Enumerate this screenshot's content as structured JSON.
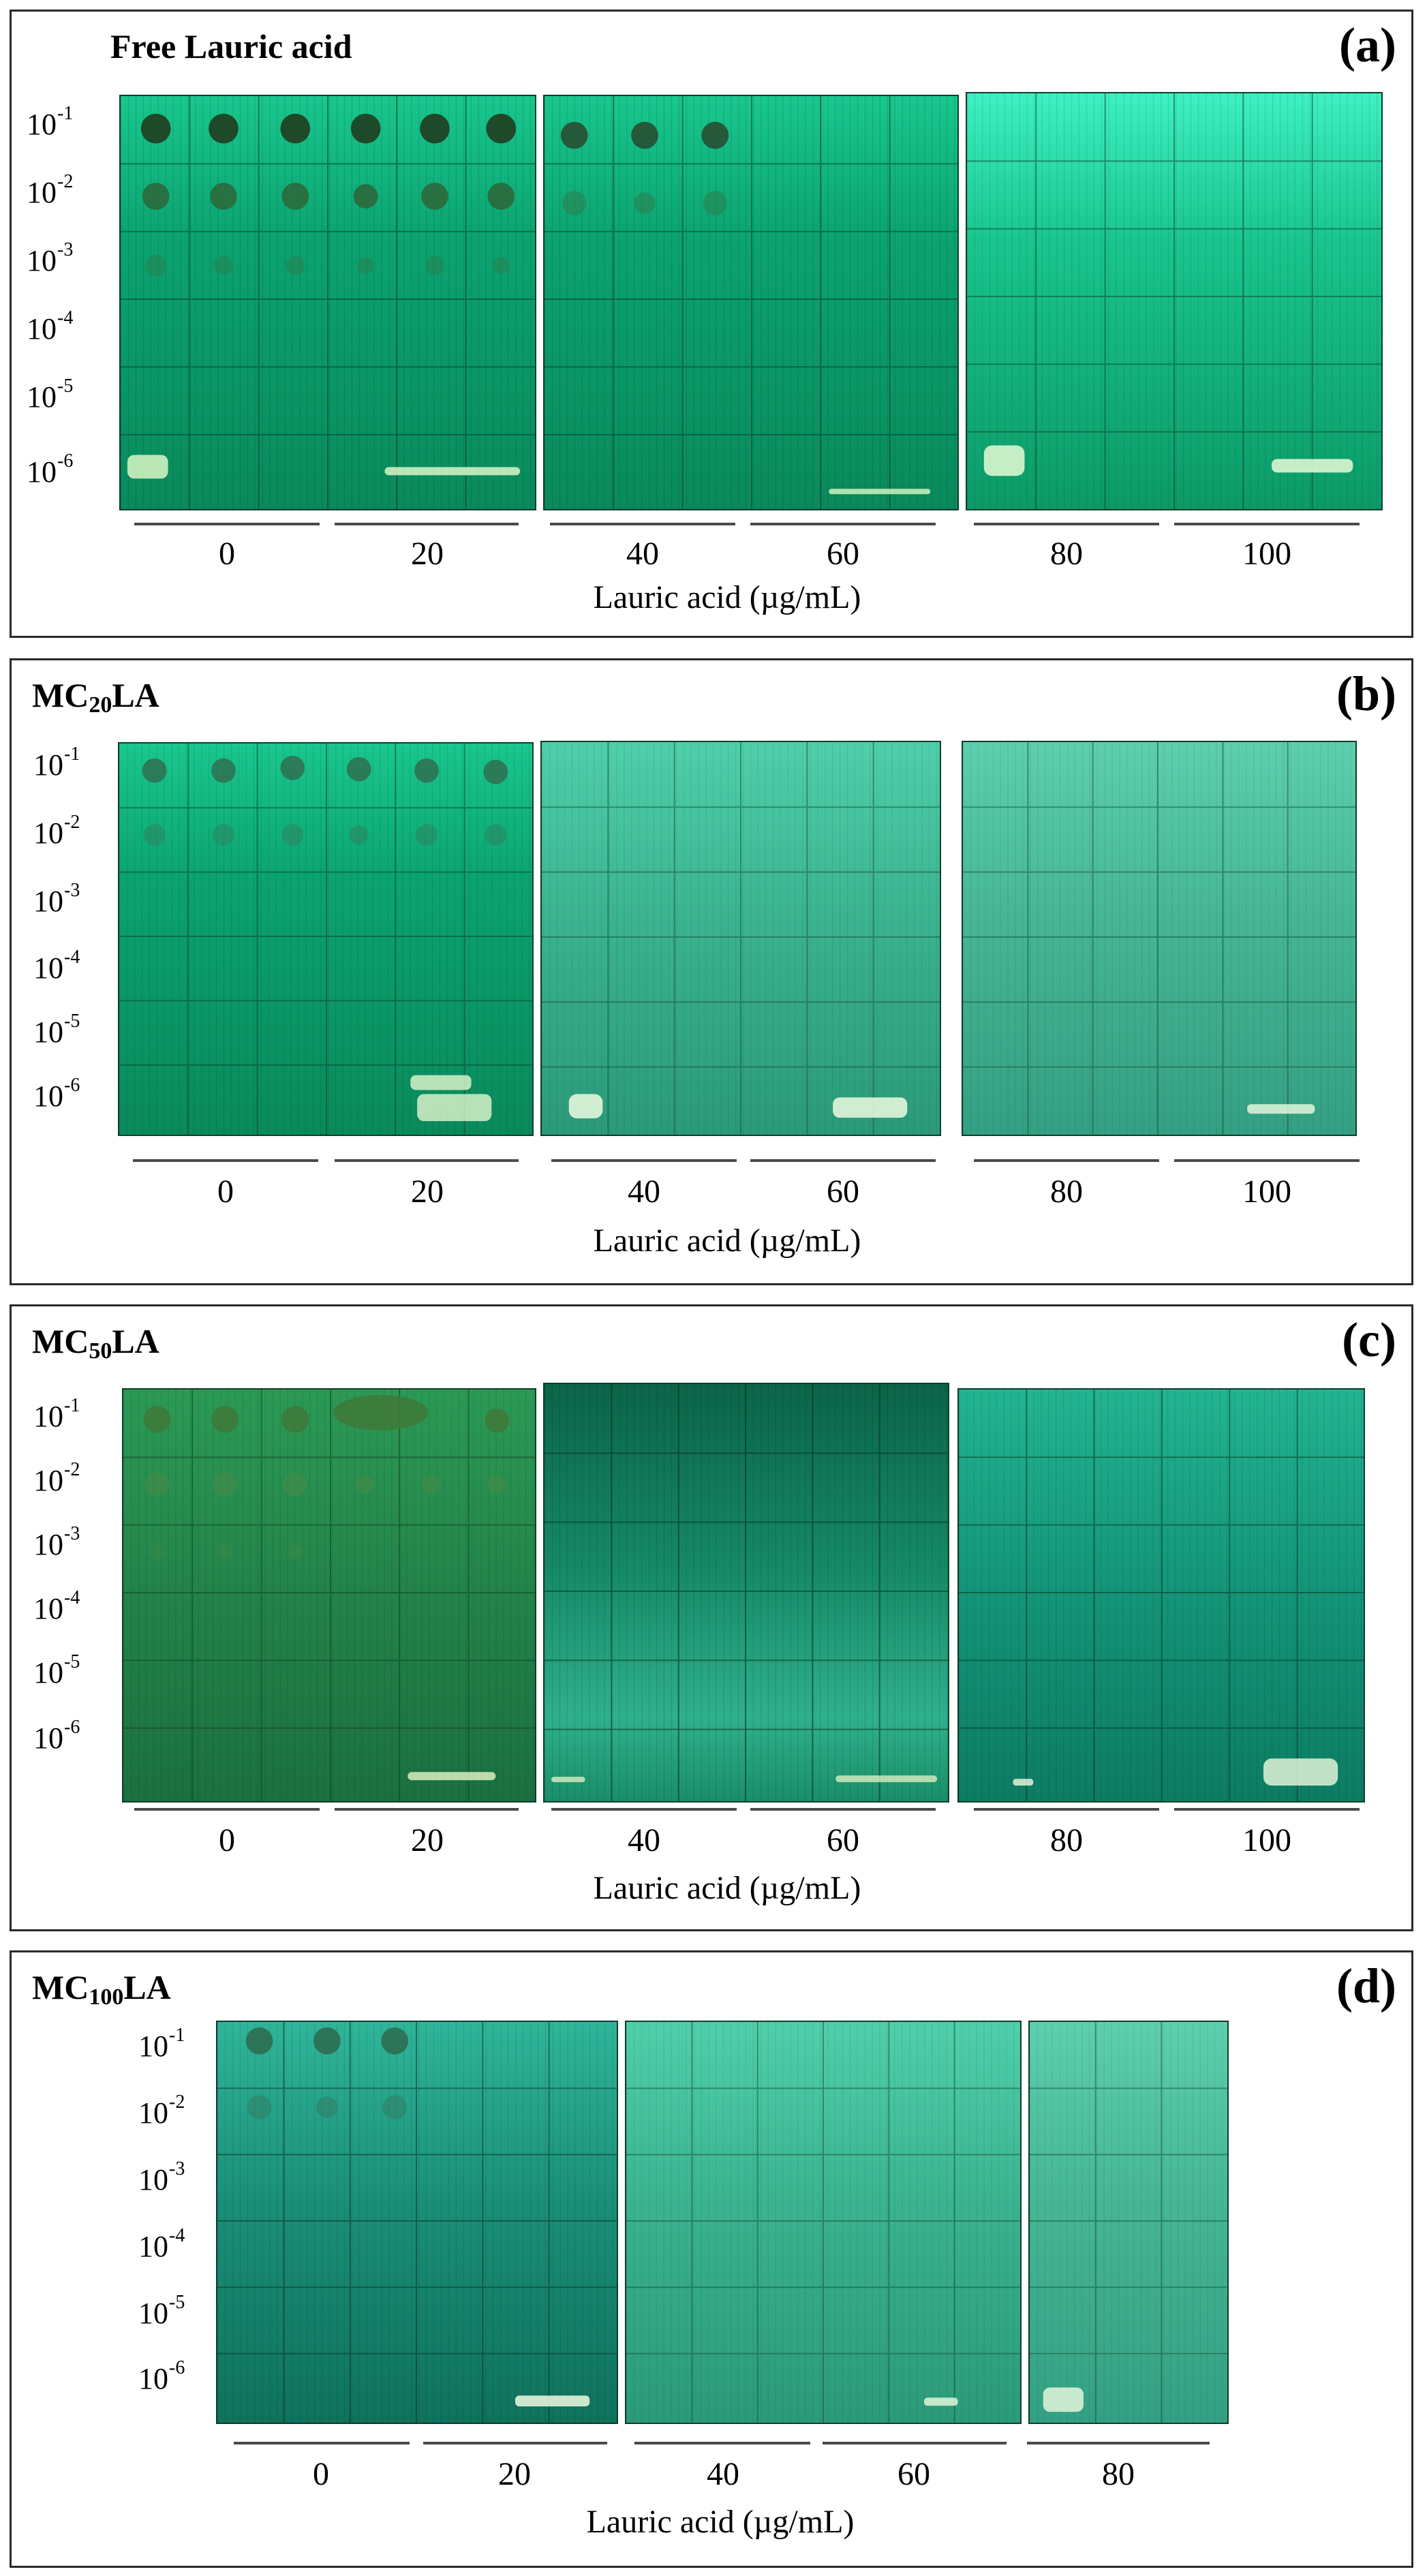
{
  "figure": {
    "dilutions": [
      {
        "base": "10",
        "exp": "-1"
      },
      {
        "base": "10",
        "exp": "-2"
      },
      {
        "base": "10",
        "exp": "-3"
      },
      {
        "base": "10",
        "exp": "-4"
      },
      {
        "base": "10",
        "exp": "-5"
      },
      {
        "base": "10",
        "exp": "-6"
      }
    ],
    "xlabel": "Lauric acid (µg/mL)",
    "panels": [
      {
        "id": "a",
        "tag": "(a)",
        "title_main": "Free Lauric acid",
        "title_sub": "",
        "title_tail": "",
        "concentrations": [
          "0",
          "20",
          "40",
          "60",
          "80",
          "100"
        ]
      },
      {
        "id": "b",
        "tag": "(b)",
        "title_main": "MC",
        "title_sub": "20",
        "title_tail": "LA",
        "concentrations": [
          "0",
          "20",
          "40",
          "60",
          "80",
          "100"
        ]
      },
      {
        "id": "c",
        "tag": "(c)",
        "title_main": "MC",
        "title_sub": "50",
        "title_tail": "LA",
        "concentrations": [
          "0",
          "20",
          "40",
          "60",
          "80",
          "100"
        ]
      },
      {
        "id": "d",
        "tag": "(d)",
        "title_main": "MC",
        "title_sub": "100",
        "title_tail": "LA",
        "concentrations": [
          "0",
          "20",
          "40",
          "60",
          "80"
        ]
      }
    ]
  }
}
